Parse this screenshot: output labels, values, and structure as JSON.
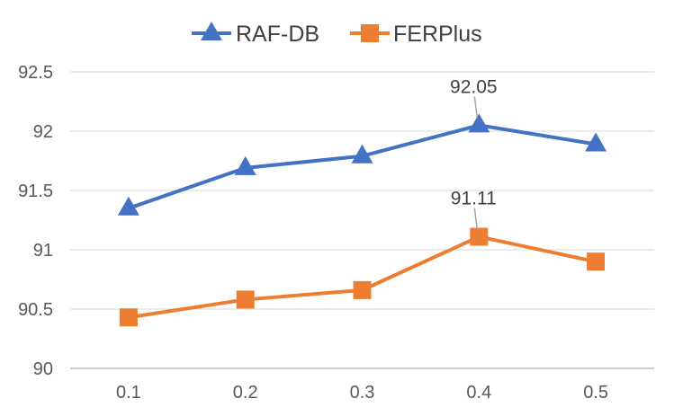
{
  "chart_data": {
    "type": "line",
    "title": "",
    "xlabel": "",
    "ylabel": "",
    "categories": [
      "0.1",
      "0.2",
      "0.3",
      "0.4",
      "0.5"
    ],
    "ylim": [
      90,
      92.5
    ],
    "yticks": [
      "90",
      "90.5",
      "91",
      "91.5",
      "92",
      "92.5"
    ],
    "grid": true,
    "legend_position": "top-center",
    "series": [
      {
        "name": "RAF-DB",
        "color": "#4472C4",
        "marker": "triangle",
        "values": [
          91.35,
          91.69,
          91.79,
          92.05,
          91.89
        ]
      },
      {
        "name": "FERPlus",
        "color": "#ED7D31",
        "marker": "square",
        "values": [
          90.43,
          90.58,
          90.66,
          91.11,
          90.9
        ]
      }
    ],
    "annotations": [
      {
        "series": 0,
        "index": 3,
        "text": "92.05"
      },
      {
        "series": 1,
        "index": 3,
        "text": "91.11"
      }
    ]
  }
}
